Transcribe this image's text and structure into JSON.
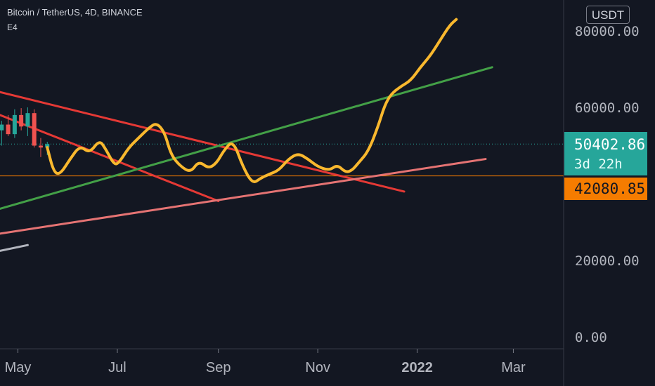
{
  "header": {
    "title": "Bitcoin / TetherUS, 4D, BINANCE",
    "indicator": "E4"
  },
  "currency_button": "USDT",
  "price_badges": {
    "last_price": "50402.86",
    "countdown": "3d 22h",
    "level": "42080.85"
  },
  "colors": {
    "background": "#131722",
    "projection": "#f9b82e",
    "resistance_line": "#e53935",
    "support_line": "#43a047",
    "lower_support_line": "#e57373",
    "up_candle": "#26a69a",
    "down_candle": "#ef5350",
    "level_line": "#f57c00"
  },
  "chart_data": {
    "type": "line",
    "title": "Bitcoin / TetherUS, 4D, BINANCE",
    "xlabel": "",
    "ylabel": "",
    "ylim": [
      0,
      87000
    ],
    "xlim": [
      "2021-04-20",
      "2022-03-31"
    ],
    "x_tick_labels": [
      "May",
      "Jul",
      "Sep",
      "Nov",
      "2022",
      "Mar"
    ],
    "x_tick_dates": [
      "2021-05-01",
      "2021-07-01",
      "2021-09-01",
      "2021-11-01",
      "2022-01-01",
      "2022-03-01"
    ],
    "y_tick_values": [
      0,
      20000,
      40000,
      60000,
      80000
    ],
    "y_tick_labels": [
      "0.00",
      "20000.00",
      "60000.00",
      "80000.00"
    ],
    "grid": false,
    "candles": [
      {
        "date": "2021-04-21",
        "open": 54000,
        "high": 56500,
        "low": 50000,
        "close": 55500,
        "dir": "up"
      },
      {
        "date": "2021-04-25",
        "open": 55500,
        "high": 58000,
        "low": 52500,
        "close": 53000,
        "dir": "down"
      },
      {
        "date": "2021-04-29",
        "open": 53000,
        "high": 59500,
        "low": 52000,
        "close": 58000,
        "dir": "up"
      },
      {
        "date": "2021-05-03",
        "open": 58000,
        "high": 59800,
        "low": 54000,
        "close": 55000,
        "dir": "down"
      },
      {
        "date": "2021-05-07",
        "open": 55000,
        "high": 60000,
        "low": 52500,
        "close": 58500,
        "dir": "up"
      },
      {
        "date": "2021-05-11",
        "open": 58500,
        "high": 59500,
        "low": 49500,
        "close": 50000,
        "dir": "down"
      },
      {
        "date": "2021-05-15",
        "open": 50000,
        "high": 52000,
        "low": 47000,
        "close": 49500,
        "dir": "down"
      },
      {
        "date": "2021-05-19",
        "open": 49500,
        "high": 51000,
        "low": 47500,
        "close": 50400,
        "dir": "up"
      }
    ],
    "series": [
      {
        "name": "",
        "role": "projection",
        "color": "#f9b82e",
        "x": [
          "2021-05-19",
          "2021-05-23",
          "2021-05-27",
          "2021-06-02",
          "2021-06-08",
          "2021-06-14",
          "2021-06-20",
          "2021-06-24",
          "2021-06-29",
          "2021-07-02",
          "2021-07-08",
          "2021-07-14",
          "2021-07-20",
          "2021-07-25",
          "2021-07-30",
          "2021-08-03",
          "2021-08-09",
          "2021-08-15",
          "2021-08-20",
          "2021-08-26",
          "2021-08-31",
          "2021-09-04",
          "2021-09-10",
          "2021-09-16",
          "2021-09-22",
          "2021-09-27",
          "2021-10-02",
          "2021-10-08",
          "2021-10-14",
          "2021-10-20",
          "2021-10-26",
          "2021-11-01",
          "2021-11-08",
          "2021-11-13",
          "2021-11-18",
          "2021-11-22",
          "2021-11-26",
          "2021-12-02",
          "2021-12-08",
          "2021-12-12",
          "2021-12-16",
          "2021-12-22",
          "2021-12-28",
          "2022-01-03",
          "2022-01-09",
          "2022-01-15",
          "2022-01-21",
          "2022-01-25"
        ],
        "y": [
          49500,
          43000,
          42500,
          46500,
          50000,
          48000,
          51500,
          49000,
          45000,
          45500,
          49500,
          52000,
          54500,
          56000,
          53500,
          47500,
          44500,
          43000,
          46000,
          44000,
          45500,
          48500,
          51500,
          44500,
          40000,
          41500,
          42500,
          43500,
          46500,
          48000,
          46500,
          44500,
          43500,
          45000,
          43000,
          43500,
          45500,
          48500,
          55000,
          60500,
          63500,
          65500,
          67000,
          70500,
          73500,
          77500,
          81500,
          83000
        ]
      }
    ],
    "trendlines": [
      {
        "name": "",
        "color": "#e53935",
        "x": [
          "2021-04-20",
          "2021-12-24"
        ],
        "y": [
          64000,
          38000
        ]
      },
      {
        "name": "",
        "color": "#e53935",
        "x": [
          "2021-04-20",
          "2021-09-01"
        ],
        "y": [
          58000,
          35500
        ]
      },
      {
        "name": "",
        "color": "#43a047",
        "x": [
          "2021-04-20",
          "2022-02-16"
        ],
        "y": [
          33500,
          70500
        ]
      },
      {
        "name": "",
        "color": "#e57373",
        "x": [
          "2021-04-20",
          "2022-02-12"
        ],
        "y": [
          27000,
          46500
        ]
      },
      {
        "name": "",
        "color": "#b2b5be",
        "x": [
          "2021-04-20",
          "2021-05-07"
        ],
        "y": [
          22500,
          24000
        ]
      }
    ],
    "horizontal_lines": [
      {
        "y": 42080.85,
        "color": "#f57c00",
        "style": "solid"
      },
      {
        "y": 50402.86,
        "color": "#26a69a",
        "style": "dotted"
      }
    ]
  }
}
